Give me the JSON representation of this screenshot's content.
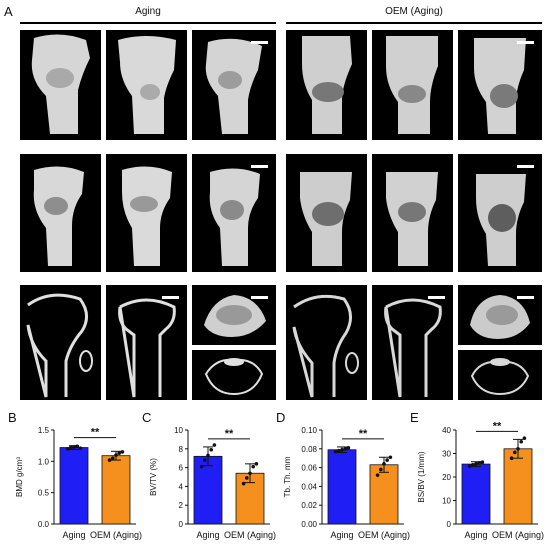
{
  "figure": {
    "panel_a_letter": "A",
    "groups": [
      {
        "title": "Aging"
      },
      {
        "title": "OEM (Aging)"
      }
    ],
    "colors": {
      "aging": "#1f1ff5",
      "oem": "#f5901e",
      "image_bg": "#000000",
      "bone": "#d9d9d9"
    }
  },
  "chart_data": [
    {
      "type": "bar",
      "letter": "B",
      "ylabel": "BMD g/cm³",
      "categories": [
        "Aging",
        "OEM (Aging)"
      ],
      "values": [
        1.22,
        1.09
      ],
      "errors": [
        0.03,
        0.07
      ],
      "points": [
        [
          1.2,
          1.22,
          1.23,
          1.24,
          1.21
        ],
        [
          1.02,
          1.05,
          1.1,
          1.13,
          1.15
        ]
      ],
      "ylim": [
        0,
        1.5
      ],
      "yticks": [
        "0.0",
        "0.5",
        "1.0",
        "1.5"
      ],
      "ytick_values": [
        0,
        0.5,
        1.0,
        1.5
      ],
      "significance": "**"
    },
    {
      "type": "bar",
      "letter": "C",
      "ylabel": "BV/TV (%)",
      "categories": [
        "Aging",
        "OEM (Aging)"
      ],
      "values": [
        7.2,
        5.4
      ],
      "errors": [
        1.0,
        1.0
      ],
      "points": [
        [
          6.1,
          6.8,
          7.3,
          7.9,
          8.4
        ],
        [
          4.3,
          4.9,
          5.4,
          6.1,
          6.4
        ]
      ],
      "ylim": [
        0,
        10
      ],
      "yticks": [
        "0",
        "2",
        "4",
        "6",
        "8",
        "10"
      ],
      "ytick_values": [
        0,
        2,
        4,
        6,
        8,
        10
      ],
      "significance": "**"
    },
    {
      "type": "bar",
      "letter": "D",
      "ylabel": "Tb. Th. mm",
      "categories": [
        "Aging",
        "OEM (Aging)"
      ],
      "values": [
        0.079,
        0.063
      ],
      "errors": [
        0.003,
        0.008
      ],
      "points": [
        [
          0.077,
          0.078,
          0.079,
          0.08,
          0.081
        ],
        [
          0.052,
          0.058,
          0.064,
          0.068,
          0.071
        ]
      ],
      "ylim": [
        0,
        0.1
      ],
      "yticks": [
        "0.00",
        "0.02",
        "0.04",
        "0.06",
        "0.08",
        "0.10"
      ],
      "ytick_values": [
        0,
        0.02,
        0.04,
        0.06,
        0.08,
        0.1
      ],
      "significance": "**"
    },
    {
      "type": "bar",
      "letter": "E",
      "ylabel": "BS/BV (1/mm)",
      "categories": [
        "Aging",
        "OEM (Aging)"
      ],
      "values": [
        25.5,
        32
      ],
      "errors": [
        1.0,
        4.0
      ],
      "points": [
        [
          24.6,
          25.2,
          25.6,
          26.0,
          26.3
        ],
        [
          28.0,
          30.5,
          32.0,
          35.0,
          36.5
        ]
      ],
      "ylim": [
        0,
        40
      ],
      "yticks": [
        "0",
        "10",
        "20",
        "30",
        "40"
      ],
      "ytick_values": [
        0,
        10,
        20,
        30,
        40
      ],
      "significance": "**"
    }
  ]
}
